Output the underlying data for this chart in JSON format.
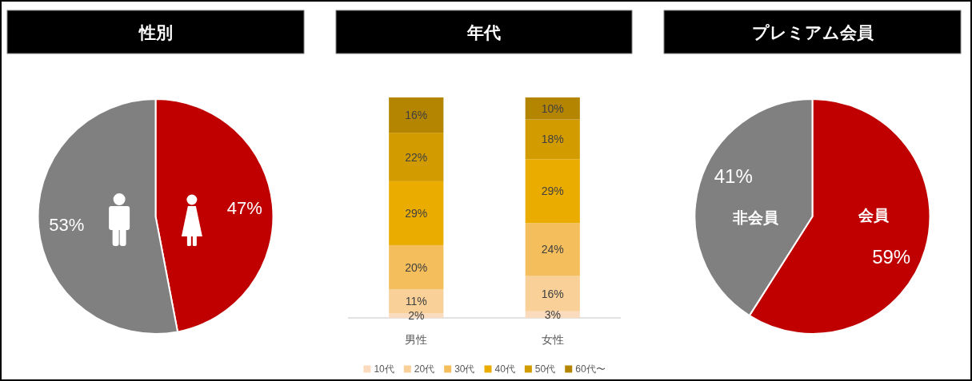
{
  "chart_data": [
    {
      "type": "pie",
      "title": "性別",
      "categories": [
        null,
        null
      ],
      "values": [
        47,
        53
      ],
      "colors": [
        "#c00000",
        "#808080"
      ],
      "value_labels": [
        "47%",
        "53%"
      ]
    },
    {
      "type": "bar",
      "title": "年代",
      "categories": [
        "男性",
        "女性"
      ],
      "stacked": true,
      "legend": "bottom",
      "series": [
        {
          "name": "10代",
          "color": "#fadbbd",
          "values": [
            2,
            3
          ],
          "value_labels": [
            "2%",
            "3%"
          ]
        },
        {
          "name": "20代",
          "color": "#f8d098",
          "values": [
            11,
            16
          ],
          "value_labels": [
            "11%",
            "16%"
          ]
        },
        {
          "name": "30代",
          "color": "#f5be5c",
          "values": [
            20,
            24
          ],
          "value_labels": [
            "20%",
            "24%"
          ]
        },
        {
          "name": "40代",
          "color": "#ebac00",
          "values": [
            29,
            29
          ],
          "value_labels": [
            "29%",
            "29%"
          ]
        },
        {
          "name": "50代",
          "color": "#d29b00",
          "values": [
            22,
            18
          ],
          "value_labels": [
            "22%",
            "18%"
          ]
        },
        {
          "name": "60代〜",
          "color": "#b48500",
          "values": [
            16,
            10
          ],
          "value_labels": [
            "16%",
            "10%"
          ]
        }
      ]
    },
    {
      "type": "pie",
      "title": "プレミアム会員",
      "categories": [
        "会員",
        "非会員"
      ],
      "values": [
        59,
        41
      ],
      "colors": [
        "#c00000",
        "#808080"
      ],
      "value_labels": [
        "59%",
        "41%"
      ]
    }
  ]
}
